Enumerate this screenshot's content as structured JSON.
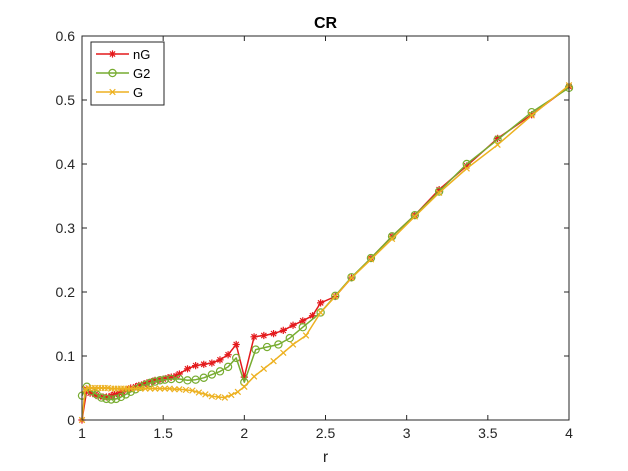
{
  "chart_data": {
    "type": "line",
    "title": "CR",
    "xlabel": "r",
    "ylabel": "",
    "xlim": [
      1,
      4
    ],
    "ylim": [
      0,
      0.6
    ],
    "xticks": [
      1,
      1.5,
      2,
      2.5,
      3,
      3.5,
      4
    ],
    "yticks": [
      0,
      0.1,
      0.2,
      0.3,
      0.4,
      0.5,
      0.6
    ],
    "xtick_labels": [
      "1",
      "1.5",
      "2",
      "2.5",
      "3",
      "3.5",
      "4"
    ],
    "ytick_labels": [
      "0",
      "0.1",
      "0.2",
      "0.3",
      "0.4",
      "0.5",
      "0.6"
    ],
    "grid": false,
    "legend_position": "top-left",
    "series": [
      {
        "name": "nG",
        "color": "#e41a1c",
        "marker": "asterisk",
        "x": [
          1.0,
          1.03,
          1.05,
          1.08,
          1.1,
          1.13,
          1.15,
          1.18,
          1.2,
          1.23,
          1.25,
          1.28,
          1.3,
          1.33,
          1.35,
          1.38,
          1.4,
          1.43,
          1.45,
          1.48,
          1.5,
          1.53,
          1.55,
          1.58,
          1.6,
          1.65,
          1.7,
          1.75,
          1.8,
          1.85,
          1.9,
          1.95,
          2.0,
          2.06,
          2.12,
          2.18,
          2.24,
          2.3,
          2.36,
          2.42,
          2.47,
          2.56,
          2.66,
          2.78,
          2.91,
          3.05,
          3.2,
          3.37,
          3.56,
          3.77,
          4.0
        ],
        "y": [
          0.0,
          0.048,
          0.042,
          0.04,
          0.037,
          0.036,
          0.036,
          0.038,
          0.04,
          0.042,
          0.044,
          0.047,
          0.05,
          0.052,
          0.054,
          0.056,
          0.058,
          0.06,
          0.062,
          0.063,
          0.064,
          0.066,
          0.067,
          0.069,
          0.072,
          0.08,
          0.085,
          0.087,
          0.089,
          0.094,
          0.102,
          0.118,
          0.067,
          0.13,
          0.132,
          0.135,
          0.14,
          0.148,
          0.155,
          0.163,
          0.183,
          0.193,
          0.222,
          0.253,
          0.287,
          0.32,
          0.36,
          0.397,
          0.44,
          0.477,
          0.521
        ]
      },
      {
        "name": "G2",
        "color": "#77ac30",
        "marker": "circle",
        "x": [
          1.0,
          1.03,
          1.06,
          1.09,
          1.12,
          1.15,
          1.18,
          1.21,
          1.24,
          1.27,
          1.3,
          1.33,
          1.36,
          1.39,
          1.42,
          1.45,
          1.48,
          1.51,
          1.55,
          1.6,
          1.65,
          1.7,
          1.75,
          1.8,
          1.85,
          1.9,
          1.95,
          2.0,
          2.07,
          2.14,
          2.21,
          2.28,
          2.36,
          2.47,
          2.56,
          2.66,
          2.78,
          2.91,
          3.05,
          3.2,
          3.37,
          3.56,
          3.77,
          4.0
        ],
        "y": [
          0.038,
          0.052,
          0.045,
          0.04,
          0.035,
          0.033,
          0.032,
          0.033,
          0.036,
          0.04,
          0.044,
          0.048,
          0.052,
          0.055,
          0.058,
          0.06,
          0.062,
          0.063,
          0.064,
          0.064,
          0.062,
          0.063,
          0.066,
          0.071,
          0.076,
          0.083,
          0.097,
          0.059,
          0.11,
          0.114,
          0.118,
          0.128,
          0.145,
          0.168,
          0.194,
          0.223,
          0.253,
          0.287,
          0.32,
          0.357,
          0.4,
          0.438,
          0.481,
          0.519
        ]
      },
      {
        "name": "G",
        "color": "#edb120",
        "marker": "x",
        "x": [
          1.0,
          1.02,
          1.04,
          1.06,
          1.08,
          1.1,
          1.12,
          1.14,
          1.16,
          1.18,
          1.2,
          1.22,
          1.24,
          1.26,
          1.28,
          1.3,
          1.33,
          1.36,
          1.39,
          1.42,
          1.45,
          1.48,
          1.51,
          1.54,
          1.57,
          1.6,
          1.64,
          1.68,
          1.72,
          1.76,
          1.8,
          1.84,
          1.88,
          1.92,
          1.96,
          2.0,
          2.06,
          2.12,
          2.18,
          2.24,
          2.3,
          2.38,
          2.47,
          2.56,
          2.66,
          2.78,
          2.91,
          3.05,
          3.2,
          3.37,
          3.56,
          3.77,
          4.0
        ],
        "y": [
          0.0,
          0.048,
          0.05,
          0.05,
          0.05,
          0.05,
          0.05,
          0.05,
          0.05,
          0.049,
          0.049,
          0.049,
          0.049,
          0.049,
          0.049,
          0.049,
          0.049,
          0.049,
          0.049,
          0.049,
          0.049,
          0.049,
          0.049,
          0.049,
          0.048,
          0.048,
          0.047,
          0.046,
          0.043,
          0.04,
          0.037,
          0.036,
          0.035,
          0.039,
          0.044,
          0.052,
          0.068,
          0.08,
          0.092,
          0.105,
          0.118,
          0.132,
          0.168,
          0.193,
          0.222,
          0.251,
          0.283,
          0.318,
          0.355,
          0.393,
          0.43,
          0.476,
          0.523
        ]
      }
    ]
  }
}
